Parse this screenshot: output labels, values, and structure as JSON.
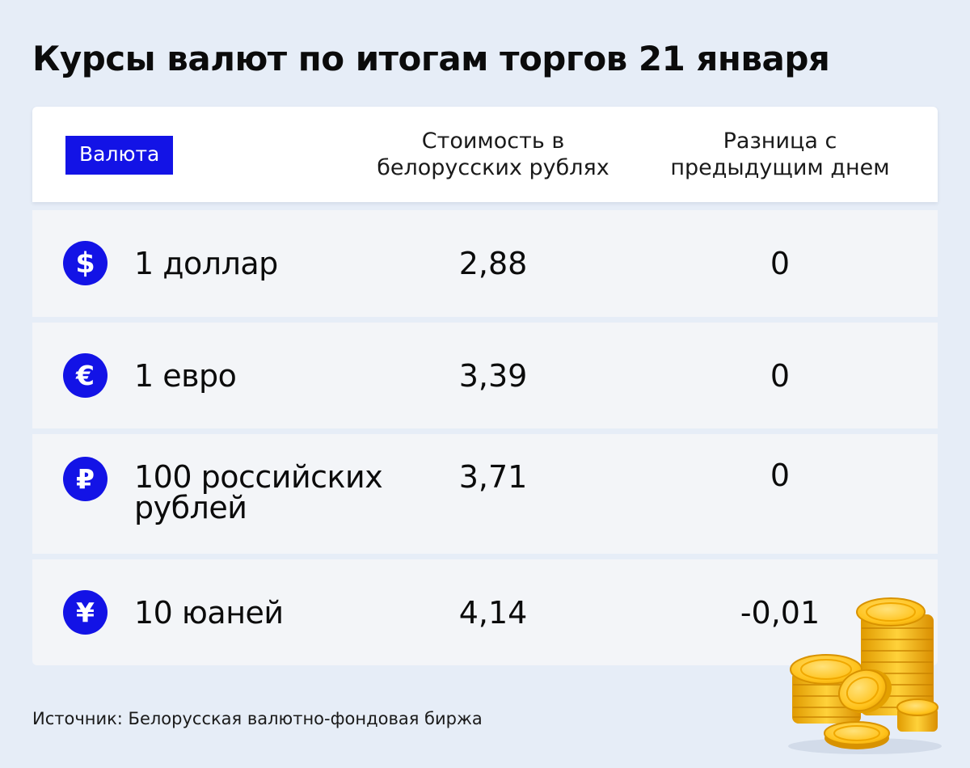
{
  "title": "Курсы валют по итогам торгов 21 января",
  "header": {
    "currency": "Валюта",
    "cost_line1": "Стоимость в",
    "cost_line2": "белорусских рублях",
    "diff_line1": "Разница с",
    "diff_line2": "предыдущим днем"
  },
  "rows": [
    {
      "icon": "dollar-icon",
      "name_line1": "1 доллар",
      "name_line2": "",
      "value": "2,88",
      "diff": "0"
    },
    {
      "icon": "euro-icon",
      "name_line1": "1 евро",
      "name_line2": "",
      "value": "3,39",
      "diff": "0"
    },
    {
      "icon": "ruble-icon",
      "name_line1": "100 российских",
      "name_line2": "рублей",
      "value": "3,71",
      "diff": "0"
    },
    {
      "icon": "yuan-icon",
      "name_line1": "10 юаней",
      "name_line2": "",
      "value": "4,14",
      "diff": "-0,01"
    }
  ],
  "source": "Источник: Белорусская валютно-фондовая биржа",
  "colors": {
    "accent": "#1313e6",
    "background": "#e6edf7",
    "row": "#f3f5f8",
    "coin": "#f2b705"
  }
}
